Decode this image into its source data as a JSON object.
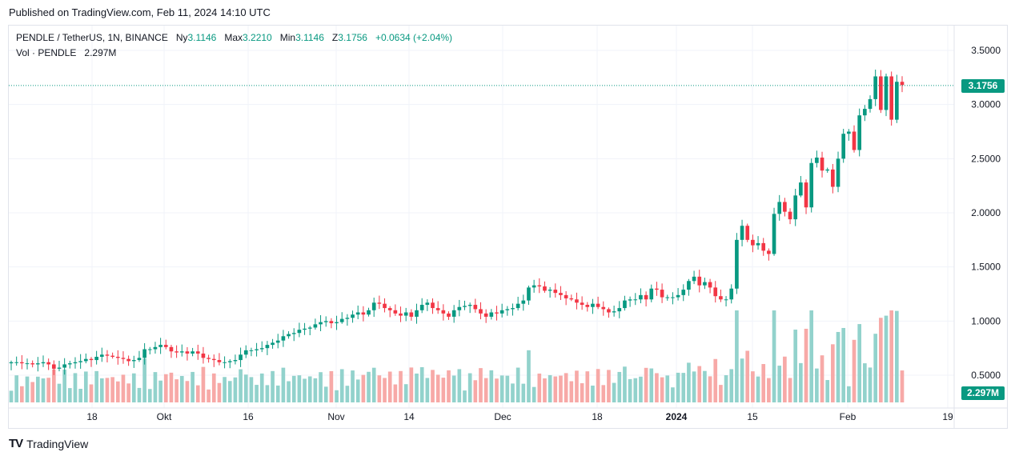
{
  "header": {
    "published": "Published on TradingView.com, Feb 11, 2024 14:10 UTC"
  },
  "legend": {
    "symbol": "PENDLE / TetherUS, 1N, BINANCE",
    "open_label": "Ny",
    "open": "3.1146",
    "high_label": "Max",
    "high": "3.2210",
    "low_label": "Min",
    "low": "3.1146",
    "close_label": "Z",
    "close": "3.1756",
    "change": "+0.0634 (+2.04%)"
  },
  "vol_legend": {
    "label": "Vol · PENDLE",
    "value": "2.297M"
  },
  "price_tag": "3.1756",
  "vol_tag": "2.297M",
  "footer": {
    "brand": "TradingView"
  },
  "colors": {
    "up": "#089981",
    "down": "#f23645",
    "up_vol": "#92d2cc",
    "down_vol": "#f7a9a7",
    "grid": "#f0f3fa"
  },
  "chart_data": {
    "type": "candlestick",
    "y_ticks": [
      "3.5000",
      "3.0000",
      "2.5000",
      "2.0000",
      "1.5000",
      "1.0000",
      "0.5000"
    ],
    "ylim": [
      0.25,
      3.9
    ],
    "x_ticks": [
      "18",
      "Okt",
      "16",
      "Nov",
      "14",
      "Dec",
      "18",
      "2024",
      "15",
      "Feb",
      "19"
    ],
    "last_price": 3.1756,
    "last_volume": "2.297M",
    "series": [
      {
        "name": "Vol · PENDLE"
      }
    ],
    "price_points": [
      0.62,
      0.62,
      0.61,
      0.61,
      0.6,
      0.61,
      0.62,
      0.6,
      0.56,
      0.57,
      0.6,
      0.61,
      0.62,
      0.63,
      0.65,
      0.64,
      0.67,
      0.69,
      0.68,
      0.67,
      0.66,
      0.65,
      0.63,
      0.64,
      0.66,
      0.74,
      0.74,
      0.76,
      0.78,
      0.76,
      0.72,
      0.71,
      0.72,
      0.7,
      0.72,
      0.7,
      0.66,
      0.65,
      0.64,
      0.62,
      0.62,
      0.63,
      0.64,
      0.69,
      0.73,
      0.73,
      0.74,
      0.75,
      0.78,
      0.8,
      0.82,
      0.86,
      0.88,
      0.89,
      0.92,
      0.93,
      0.94,
      0.97,
      0.99,
      1.0,
      0.98,
      0.99,
      1.02,
      1.03,
      1.06,
      1.08,
      1.06,
      1.1,
      1.17,
      1.16,
      1.12,
      1.1,
      1.07,
      1.05,
      1.08,
      1.04,
      1.1,
      1.15,
      1.17,
      1.12,
      1.1,
      1.07,
      1.04,
      1.1,
      1.13,
      1.14,
      1.15,
      1.11,
      1.07,
      1.04,
      1.08,
      1.07,
      1.1,
      1.11,
      1.12,
      1.16,
      1.19,
      1.31,
      1.33,
      1.32,
      1.28,
      1.29,
      1.26,
      1.24,
      1.21,
      1.2,
      1.17,
      1.15,
      1.13,
      1.16,
      1.13,
      1.11,
      1.08,
      1.09,
      1.12,
      1.19,
      1.2,
      1.2,
      1.24,
      1.2,
      1.3,
      1.29,
      1.22,
      1.22,
      1.22,
      1.24,
      1.29,
      1.37,
      1.41,
      1.33,
      1.36,
      1.31,
      1.23,
      1.2,
      1.2,
      1.3,
      1.75,
      1.88,
      1.75,
      1.7,
      1.72,
      1.65,
      1.62,
      1.99,
      2.1,
      2.01,
      1.94,
      2.16,
      2.28,
      2.05,
      2.46,
      2.51,
      2.39,
      2.4,
      2.24,
      2.5,
      2.73,
      2.75,
      2.58,
      2.9,
      2.96,
      3.05,
      3.26,
      2.95,
      3.26,
      2.86,
      3.21,
      3.18
    ],
    "volumes": "2.297M"
  }
}
